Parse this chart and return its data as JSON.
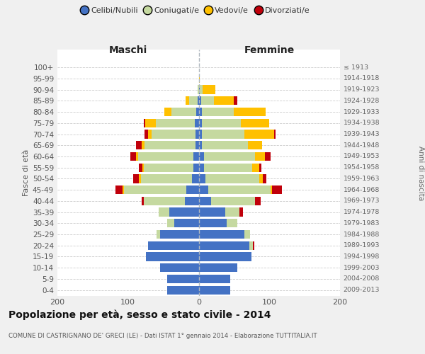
{
  "age_groups_bottom_to_top": [
    "0-4",
    "5-9",
    "10-14",
    "15-19",
    "20-24",
    "25-29",
    "30-34",
    "35-39",
    "40-44",
    "45-49",
    "50-54",
    "55-59",
    "60-64",
    "65-69",
    "70-74",
    "75-79",
    "80-84",
    "85-89",
    "90-94",
    "95-99",
    "100+"
  ],
  "birth_years_bottom_to_top": [
    "2009-2013",
    "2004-2008",
    "1999-2003",
    "1994-1998",
    "1989-1993",
    "1984-1988",
    "1979-1983",
    "1974-1978",
    "1969-1973",
    "1964-1968",
    "1959-1963",
    "1954-1958",
    "1949-1953",
    "1944-1948",
    "1939-1943",
    "1934-1938",
    "1929-1933",
    "1924-1928",
    "1919-1923",
    "1914-1918",
    "≤ 1913"
  ],
  "colors": {
    "celibi": "#4472c4",
    "coniugati": "#c5d9a0",
    "vedovi": "#ffc000",
    "divorziati": "#c0000b"
  },
  "maschi_bottom_to_top": {
    "celibi": [
      45,
      45,
      55,
      75,
      72,
      55,
      35,
      42,
      20,
      18,
      10,
      8,
      8,
      5,
      5,
      6,
      4,
      2,
      0,
      0,
      0
    ],
    "coniugati": [
      0,
      0,
      0,
      0,
      0,
      5,
      10,
      15,
      58,
      88,
      72,
      70,
      78,
      72,
      62,
      55,
      35,
      12,
      2,
      0,
      0
    ],
    "vedovi": [
      0,
      0,
      0,
      0,
      0,
      0,
      0,
      0,
      0,
      2,
      3,
      2,
      3,
      4,
      5,
      15,
      10,
      5,
      0,
      0,
      0
    ],
    "divorziati": [
      0,
      0,
      0,
      0,
      0,
      0,
      0,
      0,
      3,
      10,
      8,
      5,
      8,
      8,
      5,
      2,
      0,
      0,
      0,
      0,
      0
    ]
  },
  "femmine_bottom_to_top": {
    "celibi": [
      45,
      45,
      55,
      75,
      72,
      65,
      40,
      38,
      18,
      14,
      10,
      8,
      8,
      5,
      5,
      5,
      5,
      4,
      2,
      0,
      0
    ],
    "coniugati": [
      0,
      0,
      0,
      0,
      5,
      8,
      15,
      20,
      62,
      88,
      76,
      68,
      72,
      65,
      60,
      55,
      45,
      18,
      4,
      0,
      0
    ],
    "vedovi": [
      0,
      0,
      0,
      0,
      0,
      0,
      0,
      0,
      0,
      2,
      5,
      10,
      14,
      20,
      42,
      40,
      45,
      28,
      18,
      2,
      0
    ],
    "divorziati": [
      0,
      0,
      0,
      0,
      2,
      0,
      0,
      5,
      8,
      14,
      5,
      3,
      8,
      0,
      2,
      0,
      0,
      5,
      0,
      0,
      0
    ]
  },
  "title": "Popolazione per età, sesso e stato civile - 2014",
  "subtitle": "COMUNE DI CASTRIGNANO DE' GRECI (LE) - Dati ISTAT 1° gennaio 2014 - Elaborazione TUTTITALIA.IT",
  "xlim": 200,
  "bg_color": "#f0f0f0",
  "plot_bg": "#ffffff",
  "legend_labels": [
    "Celibi/Nubili",
    "Coniugati/e",
    "Vedovi/e",
    "Divorziati/e"
  ]
}
